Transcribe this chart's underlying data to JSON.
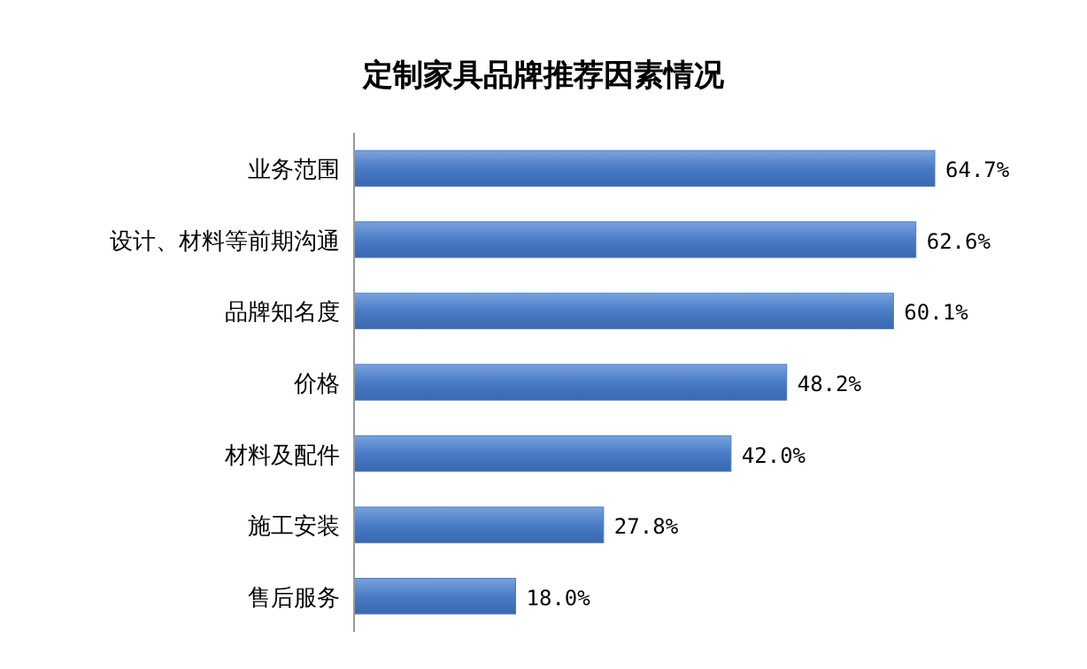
{
  "chart_data": {
    "type": "bar",
    "orientation": "horizontal",
    "title": "定制家具品牌推荐因素情况",
    "categories": [
      "业务范围",
      "设计、材料等前期沟通",
      "品牌知名度",
      "价格",
      "材料及配件",
      "施工安装",
      "售后服务"
    ],
    "values": [
      64.7,
      62.6,
      60.1,
      48.2,
      42.0,
      27.8,
      18.0
    ],
    "value_labels": [
      "64.7%",
      "62.6%",
      "60.1%",
      "48.2%",
      "42.0%",
      "27.8%",
      "18.0%"
    ],
    "color": "#4a7bc6"
  }
}
